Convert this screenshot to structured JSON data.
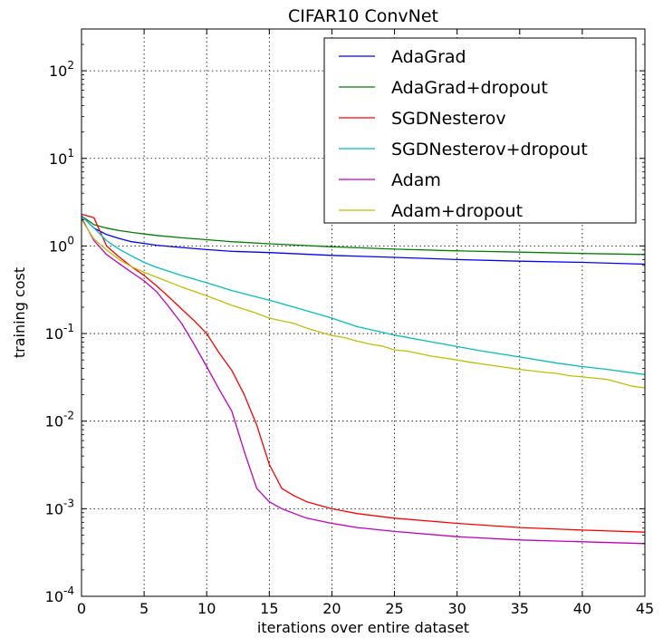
{
  "chart_data": {
    "type": "line",
    "title": "CIFAR10 ConvNet",
    "xlabel": "iterations over entire dataset",
    "ylabel": "training cost",
    "xlim": [
      0,
      45
    ],
    "ylim": [
      0.0001,
      300
    ],
    "yscale": "log",
    "xticks": [
      0,
      5,
      10,
      15,
      20,
      25,
      30,
      35,
      40,
      45
    ],
    "yticks": [
      {
        "value": 0.0001,
        "base": "10",
        "exp": "-4"
      },
      {
        "value": 0.001,
        "base": "10",
        "exp": "-3"
      },
      {
        "value": 0.01,
        "base": "10",
        "exp": "-2"
      },
      {
        "value": 0.1,
        "base": "10",
        "exp": "-1"
      },
      {
        "value": 1,
        "base": "10",
        "exp": "0"
      },
      {
        "value": 10,
        "base": "10",
        "exp": "1"
      },
      {
        "value": 100,
        "base": "10",
        "exp": "2"
      }
    ],
    "grid": true,
    "legend_position": "top-right",
    "series": [
      {
        "name": "AdaGrad",
        "color": "#0000ff",
        "x": [
          0,
          1,
          2,
          3,
          4,
          5,
          6,
          8,
          10,
          12,
          15,
          20,
          25,
          30,
          35,
          40,
          45
        ],
        "y": [
          2.2,
          1.6,
          1.35,
          1.22,
          1.12,
          1.07,
          1.02,
          0.96,
          0.91,
          0.87,
          0.84,
          0.78,
          0.74,
          0.7,
          0.67,
          0.65,
          0.62
        ]
      },
      {
        "name": "AdaGrad+dropout",
        "color": "#008000",
        "x": [
          0,
          1,
          2,
          3,
          4,
          5,
          6,
          8,
          10,
          12,
          15,
          20,
          25,
          30,
          35,
          40,
          45
        ],
        "y": [
          2.2,
          1.75,
          1.6,
          1.5,
          1.43,
          1.37,
          1.32,
          1.24,
          1.18,
          1.12,
          1.06,
          0.98,
          0.92,
          0.88,
          0.85,
          0.82,
          0.8
        ]
      },
      {
        "name": "SGDNesterov",
        "color": "#ff0000",
        "x": [
          0,
          1,
          2,
          3,
          4,
          5,
          6,
          7,
          8,
          9,
          10,
          11,
          12,
          13,
          14,
          15,
          16,
          17,
          18,
          20,
          22,
          25,
          30,
          35,
          40,
          45
        ],
        "y": [
          2.3,
          2.1,
          1.0,
          0.75,
          0.58,
          0.46,
          0.35,
          0.26,
          0.19,
          0.14,
          0.1,
          0.06,
          0.038,
          0.02,
          0.009,
          0.0032,
          0.0017,
          0.0014,
          0.0012,
          0.001,
          0.00088,
          0.00078,
          0.00068,
          0.00061,
          0.00057,
          0.00054
        ]
      },
      {
        "name": "SGDNesterov+dropout",
        "color": "#00bfbf",
        "x": [
          0,
          1,
          2,
          3,
          4,
          5,
          6,
          8,
          10,
          12,
          15,
          17,
          20,
          22,
          25,
          28,
          30,
          32,
          35,
          38,
          40,
          42,
          45
        ],
        "y": [
          2.2,
          1.6,
          1.15,
          0.92,
          0.77,
          0.65,
          0.57,
          0.46,
          0.38,
          0.31,
          0.24,
          0.2,
          0.15,
          0.12,
          0.096,
          0.08,
          0.071,
          0.063,
          0.054,
          0.046,
          0.042,
          0.039,
          0.034
        ]
      },
      {
        "name": "Adam",
        "color": "#bf00bf",
        "x": [
          0,
          1,
          2,
          3,
          4,
          5,
          6,
          7,
          8,
          9,
          10,
          11,
          12,
          13,
          14,
          15,
          16,
          17,
          18,
          20,
          22,
          25,
          30,
          35,
          40,
          45
        ],
        "y": [
          2.1,
          1.15,
          0.8,
          0.63,
          0.5,
          0.4,
          0.3,
          0.2,
          0.13,
          0.075,
          0.042,
          0.023,
          0.013,
          0.0045,
          0.0017,
          0.0012,
          0.001,
          0.00088,
          0.00078,
          0.00068,
          0.00061,
          0.00055,
          0.00048,
          0.00044,
          0.00042,
          0.0004
        ]
      },
      {
        "name": "Adam+dropout",
        "color": "#bfbf00",
        "x": [
          0,
          1,
          2,
          3,
          4,
          5,
          6,
          8,
          10,
          12,
          14,
          15,
          17,
          18,
          20,
          21,
          22,
          23,
          24,
          25,
          26,
          28,
          30,
          31,
          32,
          35,
          37,
          38,
          39,
          40,
          42,
          44,
          45
        ],
        "y": [
          2.0,
          1.2,
          0.9,
          0.7,
          0.58,
          0.5,
          0.44,
          0.34,
          0.27,
          0.21,
          0.17,
          0.15,
          0.13,
          0.115,
          0.095,
          0.09,
          0.082,
          0.076,
          0.072,
          0.065,
          0.063,
          0.055,
          0.05,
          0.047,
          0.045,
          0.039,
          0.036,
          0.035,
          0.033,
          0.032,
          0.03,
          0.025,
          0.024
        ]
      }
    ]
  }
}
